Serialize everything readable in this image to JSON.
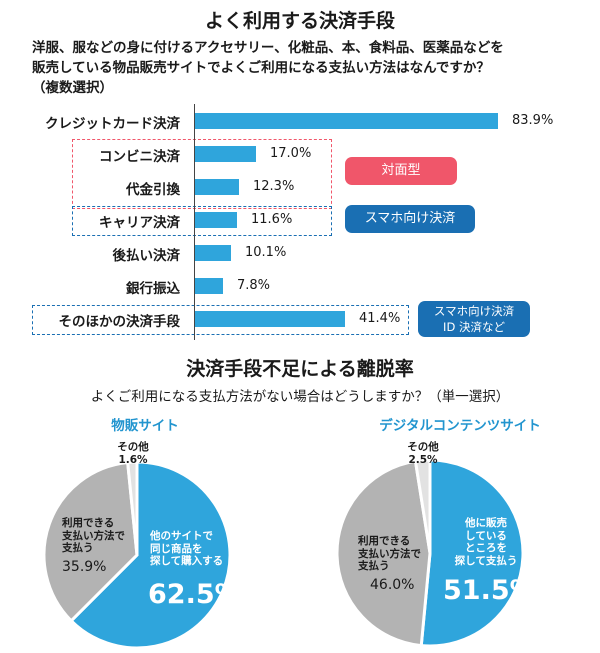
{
  "title": "よく利用する決済手段",
  "question_lines": [
    "洋服、服などの身に付けるアクセサリー、化粧品、本、食料品、医薬品などを",
    "販売している物品販売サイトでよくご利用になる支払い方法はなんですか？",
    "（複数選択）"
  ],
  "pills": {
    "face": "対面型",
    "smartphone": "スマホ向け決済",
    "smartphone_id_line1": "スマホ向け決済",
    "smartphone_id_line2": "ID 決済など"
  },
  "title2": "決済手段不足による離脱率",
  "question2": "よくご利用になる支払方法がない場合はどうしますか？（単一選択）",
  "colors": {
    "bar": "#2fa5dc",
    "pie_main": "#2fa5dc",
    "pie_mid": "#b3b3b3",
    "pie_small": "#e2e2e2",
    "pill_red": "#f0566a",
    "pill_blue": "#1a6fb3"
  },
  "chart_data": [
    {
      "type": "bar",
      "orientation": "horizontal",
      "categories": [
        "クレジットカード決済",
        "コンビニ決済",
        "代金引換",
        "キャリア決済",
        "後払い決済",
        "銀行振込",
        "そのほかの決済手段"
      ],
      "values": [
        83.9,
        17.0,
        12.3,
        11.6,
        10.1,
        7.8,
        41.4
      ],
      "value_labels": [
        "83.9%",
        "17.0%",
        "12.3%",
        "11.6%",
        "10.1%",
        "7.8%",
        "41.4%"
      ],
      "xlim": [
        0,
        100
      ]
    },
    {
      "type": "pie",
      "title": "物販サイト",
      "slices": [
        {
          "label_lines": [
            "他のサイトで",
            "同じ商品を",
            "探して購入する"
          ],
          "value": 62.5,
          "value_label": "62.5%"
        },
        {
          "label_lines": [
            "利用できる",
            "支払い方法で",
            "支払う"
          ],
          "value": 35.9,
          "value_label": "35.9%"
        },
        {
          "label_lines": [
            "その他"
          ],
          "value": 1.6,
          "value_label": "1.6%"
        }
      ]
    },
    {
      "type": "pie",
      "title": "デジタルコンテンツサイト",
      "slices": [
        {
          "label_lines": [
            "他に販売",
            "している",
            "ところを",
            "探して支払う"
          ],
          "value": 51.5,
          "value_label": "51.5%"
        },
        {
          "label_lines": [
            "利用できる",
            "支払い方法で",
            "支払う"
          ],
          "value": 46.0,
          "value_label": "46.0%"
        },
        {
          "label_lines": [
            "その他"
          ],
          "value": 2.5,
          "value_label": "2.5%"
        }
      ]
    }
  ]
}
